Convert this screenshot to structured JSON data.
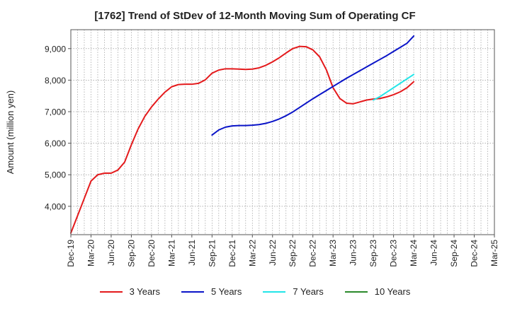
{
  "chart_data": {
    "type": "line",
    "title": "[1762]  Trend of StDev of 12-Month Moving Sum of Operating CF",
    "ylabel": "Amount (million yen)",
    "xlabel": "",
    "ylim": [
      3100,
      9600
    ],
    "yticks": [
      4000,
      5000,
      6000,
      7000,
      8000,
      9000
    ],
    "ytick_labels": [
      "4,000",
      "5,000",
      "6,000",
      "7,000",
      "8,000",
      "9,000"
    ],
    "xlim": [
      "2019-12",
      "2025-03"
    ],
    "xtick_labels": [
      "Dec-19",
      "Mar-20",
      "Jun-20",
      "Sep-20",
      "Dec-20",
      "Mar-21",
      "Jun-21",
      "Sep-21",
      "Dec-21",
      "Mar-22",
      "Jun-22",
      "Sep-22",
      "Dec-22",
      "Mar-23",
      "Jun-23",
      "Sep-23",
      "Dec-23",
      "Mar-24",
      "Jun-24",
      "Sep-24",
      "Dec-24",
      "Mar-25"
    ],
    "grid": true,
    "legend_position": "bottom",
    "series": [
      {
        "name": "3 Years",
        "color": "#e41a1c",
        "x": [
          "2019-12",
          "2020-01",
          "2020-02",
          "2020-03",
          "2020-04",
          "2020-05",
          "2020-06",
          "2020-07",
          "2020-08",
          "2020-09",
          "2020-10",
          "2020-11",
          "2020-12",
          "2021-01",
          "2021-02",
          "2021-03",
          "2021-04",
          "2021-05",
          "2021-06",
          "2021-07",
          "2021-08",
          "2021-09",
          "2021-10",
          "2021-11",
          "2021-12",
          "2022-01",
          "2022-02",
          "2022-03",
          "2022-04",
          "2022-05",
          "2022-06",
          "2022-07",
          "2022-08",
          "2022-09",
          "2022-10",
          "2022-11",
          "2022-12",
          "2023-01",
          "2023-02",
          "2023-03",
          "2023-04",
          "2023-05",
          "2023-06",
          "2023-07",
          "2023-08",
          "2023-09",
          "2023-10",
          "2023-11",
          "2023-12",
          "2024-01",
          "2024-02",
          "2024-03"
        ],
        "values": [
          3150,
          3700,
          4250,
          4800,
          5000,
          5050,
          5050,
          5150,
          5400,
          5950,
          6450,
          6850,
          7150,
          7400,
          7620,
          7790,
          7860,
          7870,
          7870,
          7900,
          8010,
          8220,
          8320,
          8360,
          8360,
          8350,
          8340,
          8350,
          8390,
          8470,
          8580,
          8710,
          8860,
          9000,
          9070,
          9060,
          8960,
          8740,
          8330,
          7760,
          7420,
          7270,
          7250,
          7310,
          7370,
          7400,
          7420,
          7470,
          7540,
          7630,
          7760,
          7950
        ]
      },
      {
        "name": "5 Years",
        "color": "#0a14c8",
        "x": [
          "2021-09",
          "2021-10",
          "2021-11",
          "2021-12",
          "2022-01",
          "2022-02",
          "2022-03",
          "2022-04",
          "2022-05",
          "2022-06",
          "2022-07",
          "2022-08",
          "2022-09",
          "2022-10",
          "2022-11",
          "2022-12",
          "2023-01",
          "2023-02",
          "2023-03",
          "2023-04",
          "2023-05",
          "2023-06",
          "2023-07",
          "2023-08",
          "2023-09",
          "2023-10",
          "2023-11",
          "2023-12",
          "2024-01",
          "2024-02",
          "2024-03"
        ],
        "values": [
          6260,
          6420,
          6510,
          6550,
          6560,
          6560,
          6570,
          6590,
          6630,
          6690,
          6770,
          6870,
          6990,
          7130,
          7270,
          7410,
          7540,
          7670,
          7800,
          7930,
          8060,
          8180,
          8300,
          8420,
          8540,
          8660,
          8780,
          8910,
          9040,
          9170,
          9400
        ]
      },
      {
        "name": "7 Years",
        "color": "#22e5e8",
        "x": [
          "2023-09",
          "2023-10",
          "2023-11",
          "2023-12",
          "2024-01",
          "2024-02",
          "2024-03"
        ],
        "values": [
          7370,
          7480,
          7620,
          7760,
          7900,
          8040,
          8180
        ]
      },
      {
        "name": "10 Years",
        "color": "#2a8a2a",
        "x": [],
        "values": []
      }
    ]
  }
}
